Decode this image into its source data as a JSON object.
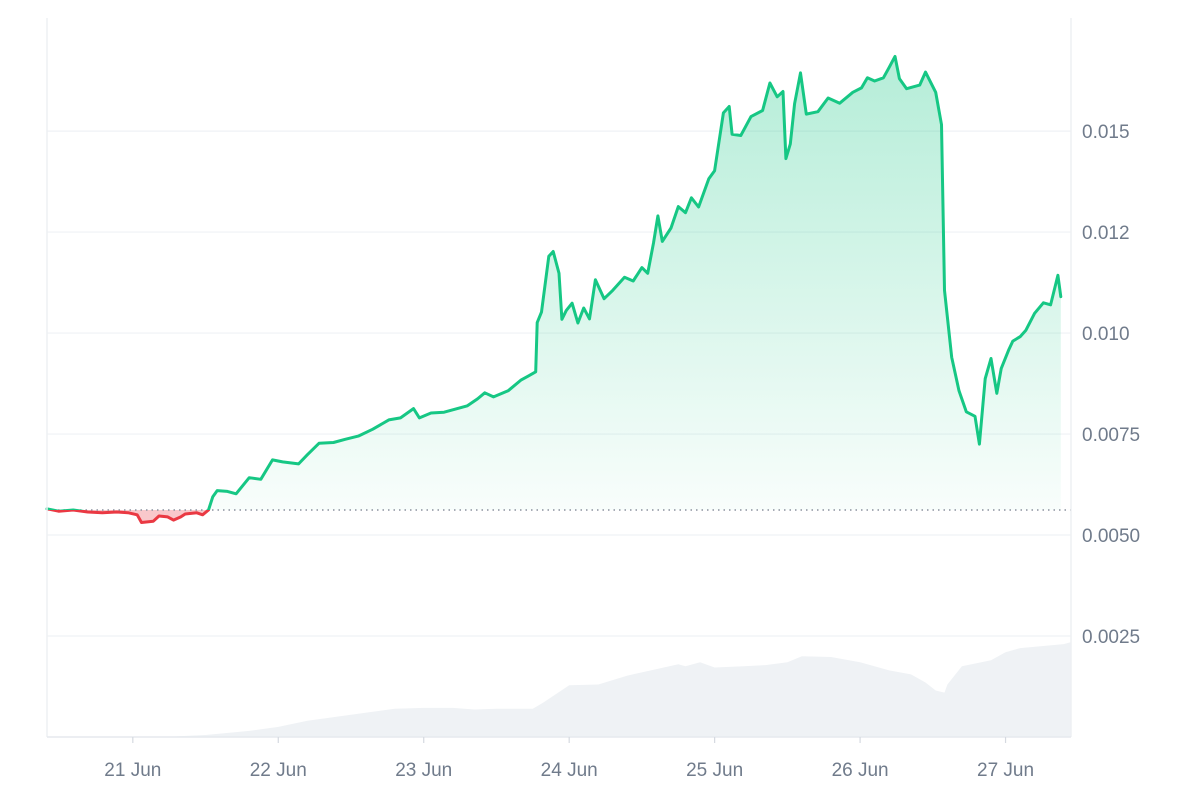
{
  "chart_data": {
    "type": "area",
    "title": "",
    "xlabel": "",
    "ylabel": "",
    "x_unit": "days (0 = 21 Jun 00:00)",
    "x_ticks": [
      {
        "label": "21 Jun",
        "x": 0
      },
      {
        "label": "22 Jun",
        "x": 1
      },
      {
        "label": "23 Jun",
        "x": 2
      },
      {
        "label": "24 Jun",
        "x": 3
      },
      {
        "label": "25 Jun",
        "x": 4
      },
      {
        "label": "26 Jun",
        "x": 5
      },
      {
        "label": "27 Jun",
        "x": 6
      }
    ],
    "y_ticks": [
      {
        "label": "0.0025",
        "value": 0.0025
      },
      {
        "label": "0.0050",
        "value": 0.005
      },
      {
        "label": "0.0075",
        "value": 0.0075
      },
      {
        "label": "0.010",
        "value": 0.01
      },
      {
        "label": "0.012",
        "value": 0.0125
      },
      {
        "label": "0.015",
        "value": 0.015
      }
    ],
    "xlim": [
      -0.59,
      6.45
    ],
    "ylim": [
      0.0,
      0.0178
    ],
    "y_axis_position": "right",
    "grid": true,
    "baseline": 0.00562,
    "colors": {
      "up": "#16c784",
      "down": "#ea3943",
      "volume": "#eff2f5",
      "grid": "#eff2f5",
      "baseline": "#8a919e",
      "tick_text": "#707b8b"
    },
    "series": [
      {
        "name": "",
        "kind": "price",
        "points": [
          [
            -0.59,
            0.00565
          ],
          [
            -0.51,
            0.00559
          ],
          [
            -0.41,
            0.00562
          ],
          [
            -0.31,
            0.00557
          ],
          [
            -0.21,
            0.00555
          ],
          [
            -0.11,
            0.00557
          ],
          [
            -0.03,
            0.00555
          ],
          [
            0.03,
            0.0055
          ],
          [
            0.06,
            0.00531
          ],
          [
            0.14,
            0.00534
          ],
          [
            0.18,
            0.00547
          ],
          [
            0.24,
            0.00545
          ],
          [
            0.28,
            0.00537
          ],
          [
            0.33,
            0.00545
          ],
          [
            0.36,
            0.00552
          ],
          [
            0.44,
            0.00555
          ],
          [
            0.48,
            0.0055
          ],
          [
            0.52,
            0.00562
          ],
          [
            0.55,
            0.00595
          ],
          [
            0.58,
            0.0061
          ],
          [
            0.65,
            0.00608
          ],
          [
            0.71,
            0.00602
          ],
          [
            0.8,
            0.00642
          ],
          [
            0.88,
            0.00638
          ],
          [
            0.96,
            0.00686
          ],
          [
            1.03,
            0.00681
          ],
          [
            1.14,
            0.00676
          ],
          [
            1.2,
            0.00699
          ],
          [
            1.28,
            0.00727
          ],
          [
            1.38,
            0.00729
          ],
          [
            1.46,
            0.00737
          ],
          [
            1.55,
            0.00745
          ],
          [
            1.65,
            0.00762
          ],
          [
            1.76,
            0.00785
          ],
          [
            1.84,
            0.0079
          ],
          [
            1.93,
            0.00813
          ],
          [
            1.97,
            0.0079
          ],
          [
            2.05,
            0.00802
          ],
          [
            2.14,
            0.00804
          ],
          [
            2.3,
            0.0082
          ],
          [
            2.37,
            0.00837
          ],
          [
            2.42,
            0.00852
          ],
          [
            2.48,
            0.00842
          ],
          [
            2.58,
            0.00857
          ],
          [
            2.67,
            0.00884
          ],
          [
            2.72,
            0.00894
          ],
          [
            2.77,
            0.00904
          ],
          [
            2.78,
            0.01026
          ],
          [
            2.81,
            0.01052
          ],
          [
            2.86,
            0.0119
          ],
          [
            2.89,
            0.01202
          ],
          [
            2.93,
            0.01148
          ],
          [
            2.95,
            0.01034
          ],
          [
            2.98,
            0.01056
          ],
          [
            3.02,
            0.01074
          ],
          [
            3.06,
            0.01025
          ],
          [
            3.1,
            0.01062
          ],
          [
            3.14,
            0.01035
          ],
          [
            3.18,
            0.01132
          ],
          [
            3.24,
            0.01085
          ],
          [
            3.3,
            0.01106
          ],
          [
            3.38,
            0.01138
          ],
          [
            3.44,
            0.01129
          ],
          [
            3.5,
            0.01162
          ],
          [
            3.54,
            0.01148
          ],
          [
            3.58,
            0.01223
          ],
          [
            3.61,
            0.0129
          ],
          [
            3.64,
            0.01227
          ],
          [
            3.7,
            0.0126
          ],
          [
            3.75,
            0.01313
          ],
          [
            3.8,
            0.01298
          ],
          [
            3.84,
            0.01335
          ],
          [
            3.89,
            0.01312
          ],
          [
            3.96,
            0.01382
          ],
          [
            4.0,
            0.01402
          ],
          [
            4.06,
            0.01545
          ],
          [
            4.1,
            0.01561
          ],
          [
            4.12,
            0.01492
          ],
          [
            4.18,
            0.01489
          ],
          [
            4.25,
            0.01536
          ],
          [
            4.33,
            0.01551
          ],
          [
            4.38,
            0.01619
          ],
          [
            4.43,
            0.01585
          ],
          [
            4.47,
            0.01598
          ],
          [
            4.49,
            0.01432
          ],
          [
            4.52,
            0.01468
          ],
          [
            4.55,
            0.01568
          ],
          [
            4.59,
            0.01644
          ],
          [
            4.63,
            0.01542
          ],
          [
            4.71,
            0.01548
          ],
          [
            4.78,
            0.01582
          ],
          [
            4.86,
            0.01569
          ],
          [
            4.95,
            0.01596
          ],
          [
            5.01,
            0.01607
          ],
          [
            5.05,
            0.01632
          ],
          [
            5.1,
            0.01624
          ],
          [
            5.16,
            0.01632
          ],
          [
            5.2,
            0.01658
          ],
          [
            5.24,
            0.01685
          ],
          [
            5.27,
            0.0163
          ],
          [
            5.32,
            0.01605
          ],
          [
            5.41,
            0.01614
          ],
          [
            5.45,
            0.01646
          ],
          [
            5.52,
            0.01596
          ],
          [
            5.56,
            0.01516
          ],
          [
            5.58,
            0.01106
          ],
          [
            5.63,
            0.0094
          ],
          [
            5.68,
            0.00857
          ],
          [
            5.73,
            0.00805
          ],
          [
            5.79,
            0.00794
          ],
          [
            5.82,
            0.00725
          ],
          [
            5.86,
            0.00887
          ],
          [
            5.9,
            0.00937
          ],
          [
            5.94,
            0.00851
          ],
          [
            5.97,
            0.00912
          ],
          [
            6.02,
            0.00957
          ],
          [
            6.05,
            0.0098
          ],
          [
            6.1,
            0.00991
          ],
          [
            6.14,
            0.01007
          ],
          [
            6.2,
            0.01049
          ],
          [
            6.26,
            0.01075
          ],
          [
            6.31,
            0.0107
          ],
          [
            6.36,
            0.01143
          ],
          [
            6.38,
            0.0109
          ]
        ]
      },
      {
        "name": "",
        "kind": "volume",
        "points": [
          [
            -0.59,
            0.0
          ],
          [
            0.2,
            0.0
          ],
          [
            0.5,
            5e-05
          ],
          [
            0.8,
            0.00015
          ],
          [
            1.0,
            0.00025
          ],
          [
            1.2,
            0.0004
          ],
          [
            1.4,
            0.0005
          ],
          [
            1.6,
            0.0006
          ],
          [
            1.8,
            0.0007
          ],
          [
            2.0,
            0.00072
          ],
          [
            2.2,
            0.00072
          ],
          [
            2.35,
            0.00068
          ],
          [
            2.5,
            0.0007
          ],
          [
            2.68,
            0.0007
          ],
          [
            2.75,
            0.0007
          ],
          [
            2.82,
            0.00085
          ],
          [
            3.0,
            0.00128
          ],
          [
            3.2,
            0.0013
          ],
          [
            3.4,
            0.00152
          ],
          [
            3.6,
            0.00168
          ],
          [
            3.75,
            0.0018
          ],
          [
            3.8,
            0.00175
          ],
          [
            3.9,
            0.00185
          ],
          [
            4.0,
            0.00172
          ],
          [
            4.2,
            0.00175
          ],
          [
            4.35,
            0.00178
          ],
          [
            4.5,
            0.00185
          ],
          [
            4.6,
            0.002
          ],
          [
            4.8,
            0.00198
          ],
          [
            5.0,
            0.00185
          ],
          [
            5.2,
            0.00165
          ],
          [
            5.35,
            0.00155
          ],
          [
            5.45,
            0.00135
          ],
          [
            5.52,
            0.00115
          ],
          [
            5.58,
            0.0011
          ],
          [
            5.6,
            0.0013
          ],
          [
            5.7,
            0.00175
          ],
          [
            5.9,
            0.0019
          ],
          [
            6.0,
            0.0021
          ],
          [
            6.1,
            0.0022
          ],
          [
            6.25,
            0.00225
          ],
          [
            6.4,
            0.0023
          ],
          [
            6.45,
            0.00235
          ]
        ]
      }
    ]
  }
}
